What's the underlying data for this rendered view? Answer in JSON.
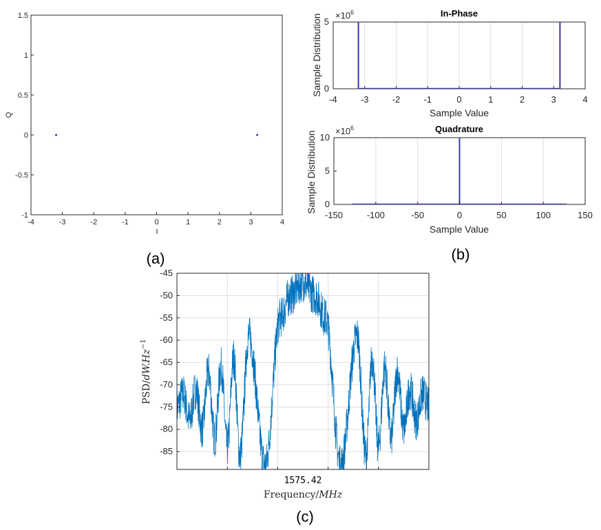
{
  "captions": {
    "a": "(a)",
    "b": "(b)",
    "c": "(c)"
  },
  "chart_data": [
    {
      "id": "a",
      "type": "scatter",
      "title": "",
      "xlabel": "I",
      "ylabel": "Q",
      "xlim": [
        -4,
        4
      ],
      "ylim": [
        -1,
        1.5
      ],
      "xticks": [
        "-4",
        "-3",
        "-2",
        "-1",
        "0",
        "1",
        "2",
        "3",
        "4"
      ],
      "yticks": [
        "-1",
        "-0.5",
        "0",
        "0.5",
        "1",
        "1.5"
      ],
      "grid": false,
      "points": [
        {
          "x": -3.2,
          "y": 0
        },
        {
          "x": 3.2,
          "y": 0
        }
      ],
      "color": "#00008b"
    },
    {
      "id": "b1",
      "type": "bar",
      "title": "In-Phase",
      "xlabel": "Sample Value",
      "ylabel": "Sample Distribution",
      "multiplier": "×10",
      "multiplier_exp": "6",
      "xlim": [
        -4,
        4
      ],
      "ylim": [
        0,
        5
      ],
      "xticks": [
        "-4",
        "-3",
        "-2",
        "-1",
        "0",
        "1",
        "2",
        "3",
        "4"
      ],
      "yticks": [
        "0",
        "5"
      ],
      "grid": true,
      "bars": [
        {
          "x": -3.2,
          "value": 5
        },
        {
          "x": 3.2,
          "value": 5
        }
      ],
      "baseline_range": [
        -3.2,
        3.2
      ],
      "color": "#3a3aa0"
    },
    {
      "id": "b2",
      "type": "bar",
      "title": "Quadrature",
      "xlabel": "Sample Value",
      "ylabel": "Sample Distribution",
      "multiplier": "×10",
      "multiplier_exp": "6",
      "xlim": [
        -150,
        150
      ],
      "ylim": [
        0,
        10
      ],
      "xticks": [
        "-150",
        "-100",
        "-50",
        "0",
        "50",
        "100",
        "150"
      ],
      "yticks": [
        "0",
        "5",
        "10"
      ],
      "grid": true,
      "bars": [
        {
          "x": 0,
          "value": 10
        }
      ],
      "baseline_range": [
        -128,
        128
      ],
      "color": "#3a3aa0"
    },
    {
      "id": "c",
      "type": "line",
      "title": "",
      "xlabel": "Frequency/",
      "xlabel_unit": "MHz",
      "ylabel": "PSD/",
      "ylabel_unit": "dW.Hz",
      "ylabel_exp": "−1",
      "center_label": "1575.42",
      "ylim": [
        -89,
        -45
      ],
      "yticks": [
        "-45",
        "-50",
        "-55",
        "-60",
        "-65",
        "-70",
        "-75",
        "-80",
        "-85"
      ],
      "grid": true,
      "color": "#0072bd",
      "envelope": [
        {
          "x": -10,
          "y": -75
        },
        {
          "x": -9.5,
          "y": -72
        },
        {
          "x": -9,
          "y": -78
        },
        {
          "x": -8.5,
          "y": -71
        },
        {
          "x": -8,
          "y": -80
        },
        {
          "x": -7.5,
          "y": -67
        },
        {
          "x": -7,
          "y": -82
        },
        {
          "x": -6.5,
          "y": -66
        },
        {
          "x": -6,
          "y": -84
        },
        {
          "x": -5.5,
          "y": -64
        },
        {
          "x": -5,
          "y": -86
        },
        {
          "x": -4.3,
          "y": -59
        },
        {
          "x": -3,
          "y": -88
        },
        {
          "x": -1.8,
          "y": -55
        },
        {
          "x": -1,
          "y": -50
        },
        {
          "x": 0,
          "y": -47
        },
        {
          "x": 1,
          "y": -50
        },
        {
          "x": 1.8,
          "y": -55
        },
        {
          "x": 3,
          "y": -88
        },
        {
          "x": 4.3,
          "y": -59
        },
        {
          "x": 5,
          "y": -86
        },
        {
          "x": 5.5,
          "y": -64
        },
        {
          "x": 6,
          "y": -84
        },
        {
          "x": 6.5,
          "y": -66
        },
        {
          "x": 7,
          "y": -82
        },
        {
          "x": 7.5,
          "y": -67
        },
        {
          "x": 8,
          "y": -80
        },
        {
          "x": 8.5,
          "y": -71
        },
        {
          "x": 9,
          "y": -78
        },
        {
          "x": 9.5,
          "y": -72
        },
        {
          "x": 10,
          "y": -75
        }
      ]
    }
  ]
}
